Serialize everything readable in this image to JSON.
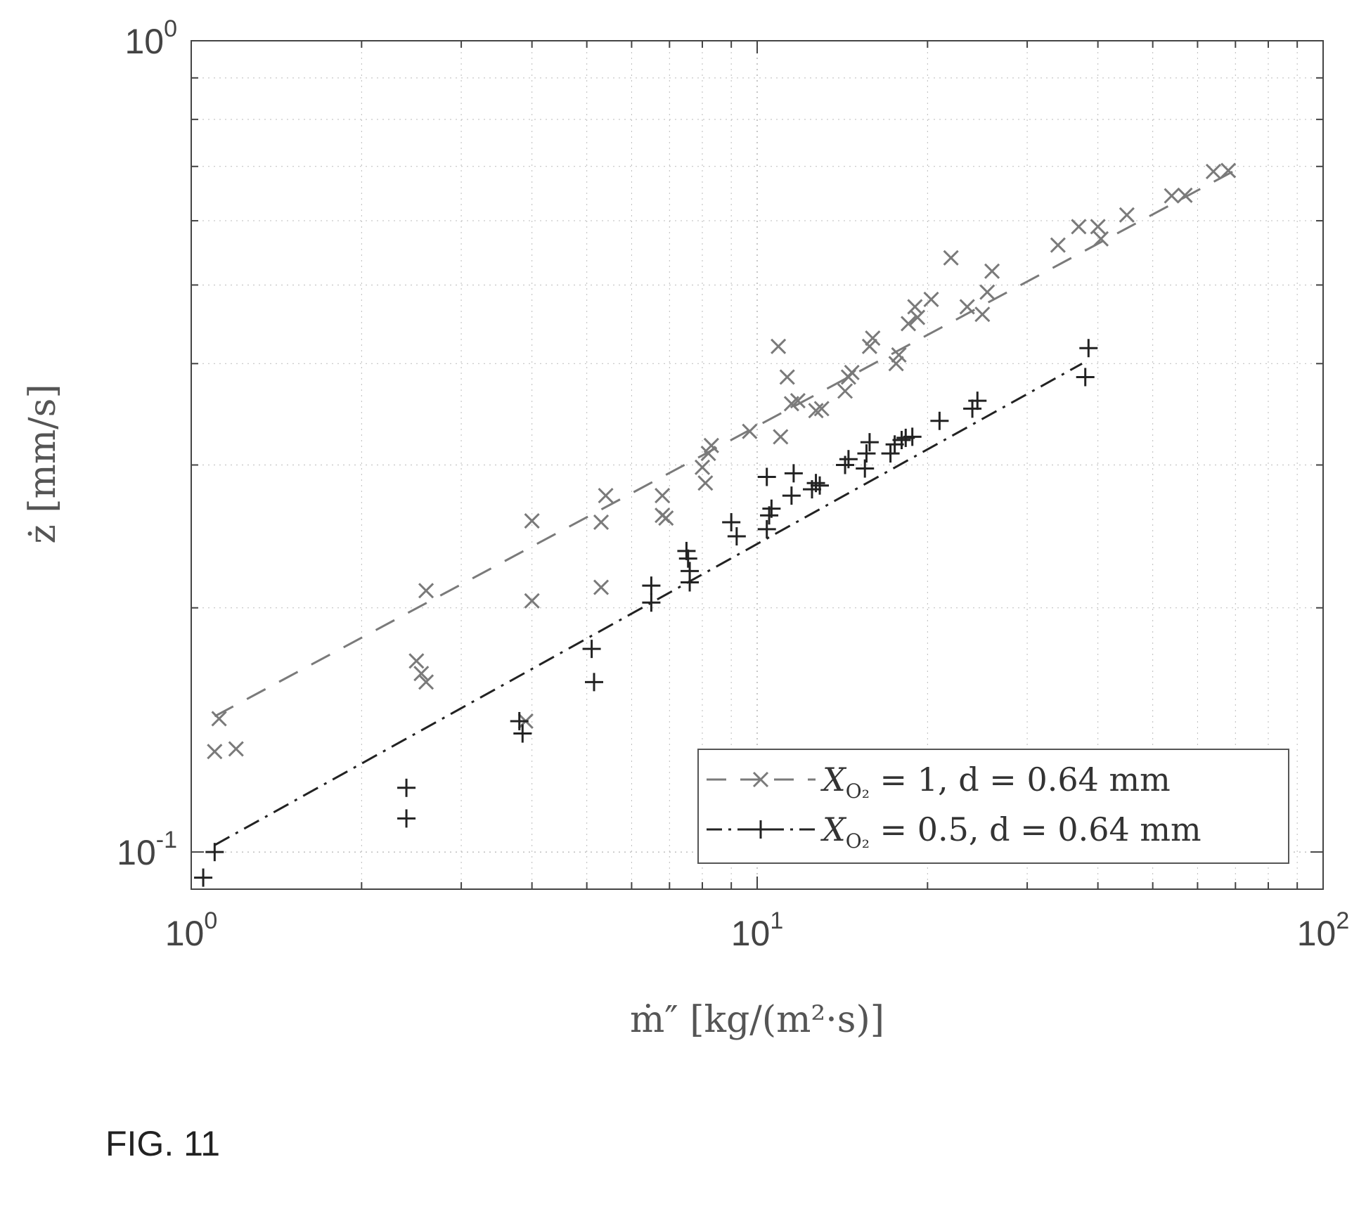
{
  "chart_data": {
    "type": "scatter",
    "xscale": "log",
    "yscale": "log",
    "xlim": [
      1,
      100
    ],
    "ylim": [
      0.09,
      1
    ],
    "xlabel": "ṁ″ [kg/(m²·s)]",
    "ylabel": "ż [mm/s]",
    "grid": true,
    "legend_position": "bottom-right",
    "x_ticks": [
      {
        "value": 1,
        "base": "10",
        "exp": "0"
      },
      {
        "value": 10,
        "base": "10",
        "exp": "1"
      },
      {
        "value": 100,
        "base": "10",
        "exp": "2"
      }
    ],
    "y_ticks": [
      {
        "value": 0.1,
        "base": "10",
        "exp": "-1"
      },
      {
        "value": 1,
        "base": "10",
        "exp": "0"
      }
    ],
    "series": [
      {
        "name": "X_O2 = 1, d = 0.64 mm",
        "legend_parts": {
          "var": "X",
          "sub": "O₂",
          "rest": " = 1, d = 0.64 mm"
        },
        "marker": "x",
        "line": "dashed",
        "color": "#7a7a7a",
        "points": [
          [
            1.12,
            0.146
          ],
          [
            1.1,
            0.133
          ],
          [
            1.2,
            0.134
          ],
          [
            2.5,
            0.172
          ],
          [
            2.55,
            0.166
          ],
          [
            2.6,
            0.162
          ],
          [
            2.6,
            0.21
          ],
          [
            3.9,
            0.145
          ],
          [
            4.0,
            0.256
          ],
          [
            4.0,
            0.204
          ],
          [
            5.3,
            0.212
          ],
          [
            5.3,
            0.255
          ],
          [
            5.4,
            0.275
          ],
          [
            6.8,
            0.26
          ],
          [
            6.8,
            0.275
          ],
          [
            6.9,
            0.258
          ],
          [
            8.0,
            0.298
          ],
          [
            8.1,
            0.285
          ],
          [
            8.2,
            0.31
          ],
          [
            8.3,
            0.317
          ],
          [
            9.7,
            0.33
          ],
          [
            10.9,
            0.42
          ],
          [
            11.0,
            0.325
          ],
          [
            11.3,
            0.385
          ],
          [
            11.5,
            0.357
          ],
          [
            11.8,
            0.36
          ],
          [
            12.7,
            0.35
          ],
          [
            13.0,
            0.352
          ],
          [
            14.3,
            0.37
          ],
          [
            14.5,
            0.385
          ],
          [
            14.7,
            0.39
          ],
          [
            15.8,
            0.42
          ],
          [
            16.0,
            0.43
          ],
          [
            17.6,
            0.4
          ],
          [
            17.8,
            0.41
          ],
          [
            18.5,
            0.448
          ],
          [
            19.0,
            0.47
          ],
          [
            19.2,
            0.456
          ],
          [
            20.3,
            0.48
          ],
          [
            22.0,
            0.54
          ],
          [
            23.5,
            0.47
          ],
          [
            25.0,
            0.46
          ],
          [
            25.5,
            0.49
          ],
          [
            26.0,
            0.52
          ],
          [
            34.0,
            0.56
          ],
          [
            37.0,
            0.59
          ],
          [
            40.0,
            0.59
          ],
          [
            40.5,
            0.57
          ],
          [
            45.0,
            0.61
          ],
          [
            54.0,
            0.644
          ],
          [
            57.0,
            0.645
          ],
          [
            64.0,
            0.69
          ],
          [
            68.0,
            0.692
          ]
        ],
        "fit": {
          "x": [
            1.1,
            72.0
          ],
          "y": [
            0.147,
            0.7
          ]
        }
      },
      {
        "name": "X_O2 = 0.5, d = 0.64 mm",
        "legend_parts": {
          "var": "X",
          "sub": "O₂",
          "rest": " = 0.5, d = 0.64 mm"
        },
        "marker": "+",
        "line": "dashdot",
        "color": "#222222",
        "points": [
          [
            1.05,
            0.093
          ],
          [
            1.1,
            0.1
          ],
          [
            2.4,
            0.12
          ],
          [
            2.4,
            0.11
          ],
          [
            3.8,
            0.145
          ],
          [
            3.85,
            0.14
          ],
          [
            5.1,
            0.178
          ],
          [
            5.15,
            0.162
          ],
          [
            6.5,
            0.213
          ],
          [
            6.5,
            0.203
          ],
          [
            7.5,
            0.235
          ],
          [
            7.55,
            0.23
          ],
          [
            7.6,
            0.222
          ],
          [
            7.6,
            0.215
          ],
          [
            9.0,
            0.255
          ],
          [
            9.2,
            0.245
          ],
          [
            10.4,
            0.25
          ],
          [
            10.5,
            0.26
          ],
          [
            10.6,
            0.265
          ],
          [
            10.4,
            0.29
          ],
          [
            11.5,
            0.275
          ],
          [
            11.6,
            0.293
          ],
          [
            12.5,
            0.28
          ],
          [
            12.7,
            0.285
          ],
          [
            12.9,
            0.283
          ],
          [
            14.3,
            0.3
          ],
          [
            14.5,
            0.305
          ],
          [
            15.5,
            0.297
          ],
          [
            15.6,
            0.31
          ],
          [
            15.8,
            0.32
          ],
          [
            17.2,
            0.31
          ],
          [
            17.5,
            0.318
          ],
          [
            18.0,
            0.322
          ],
          [
            18.3,
            0.324
          ],
          [
            18.8,
            0.325
          ],
          [
            21.0,
            0.34
          ],
          [
            24.0,
            0.352
          ],
          [
            24.5,
            0.36
          ],
          [
            38.0,
            0.385
          ],
          [
            38.5,
            0.418
          ]
        ],
        "fit": {
          "x": [
            1.1,
            37.5
          ],
          "y": [
            0.102,
            0.4
          ]
        }
      }
    ]
  },
  "caption": "FIG. 11"
}
